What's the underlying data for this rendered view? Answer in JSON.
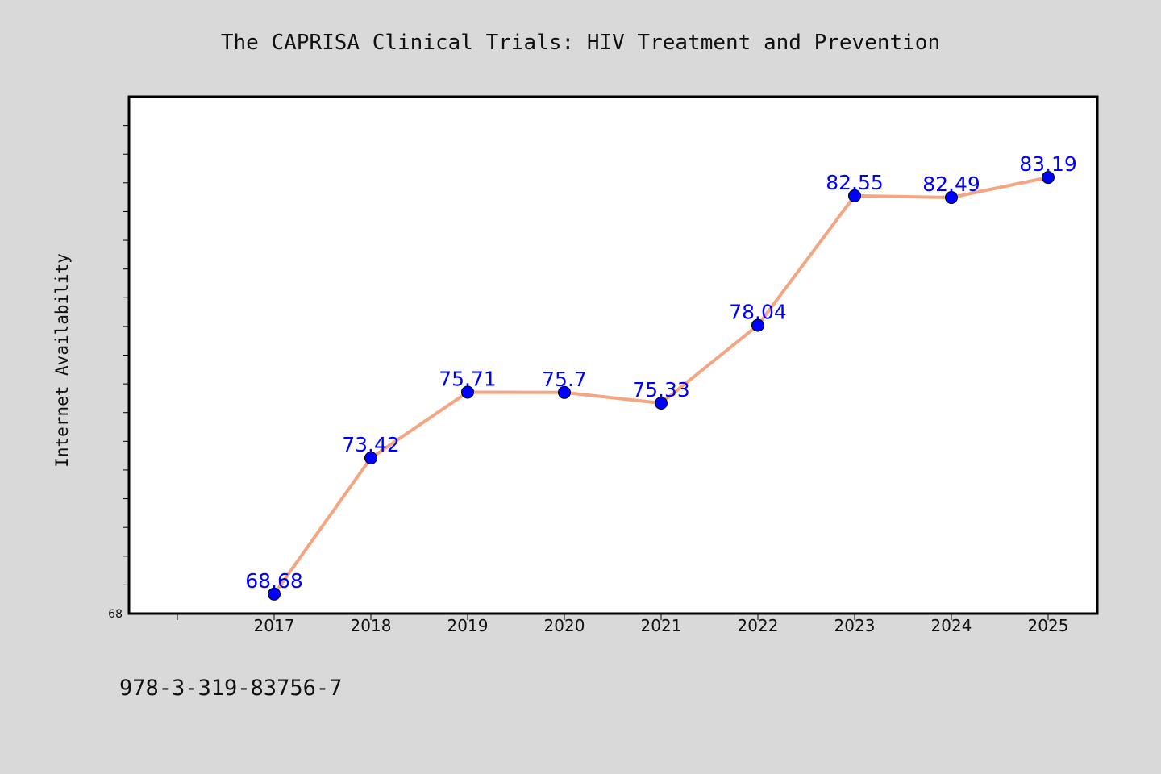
{
  "chart_data": {
    "type": "line",
    "title": "The CAPRISA Clinical Trials: HIV Treatment and Prevention",
    "xlabel": "",
    "ylabel": "Internet Availability",
    "categories": [
      "2017",
      "2018",
      "2019",
      "2020",
      "2021",
      "2022",
      "2023",
      "2024",
      "2025"
    ],
    "values": [
      68.68,
      73.42,
      75.71,
      75.7,
      75.33,
      78.04,
      82.55,
      82.49,
      83.19
    ],
    "data_labels": [
      "68.68",
      "73.42",
      "75.71",
      "75.7",
      "75.33",
      "78.04",
      "82.55",
      "82.49",
      "83.19"
    ],
    "ylim": [
      68,
      86
    ],
    "y_tick_label": "68",
    "line_color": "#f4a582",
    "marker_color": "#0000ff",
    "label_color": "#0000ff",
    "grid": false,
    "legend": "none"
  },
  "footer_text": "978-3-319-83756-7"
}
